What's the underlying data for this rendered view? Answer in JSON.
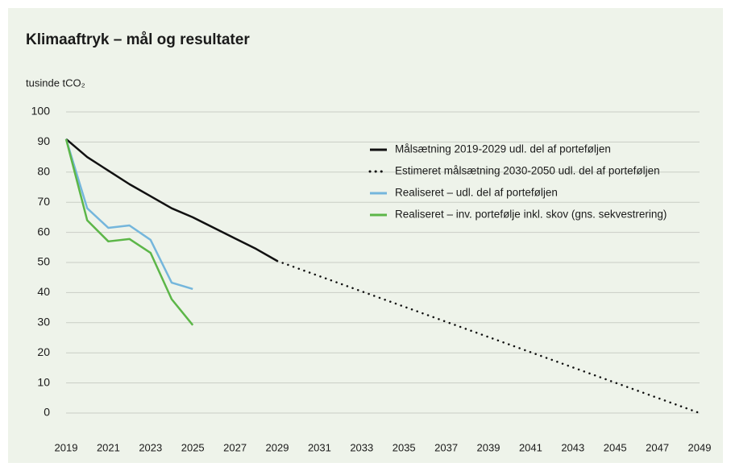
{
  "chart_data": {
    "type": "line",
    "title": "Klimaaftryk – mål og resultater",
    "y_label": "tusinde tCO₂",
    "xlim": [
      2019,
      2049
    ],
    "xticks": [
      2019,
      2021,
      2023,
      2025,
      2027,
      2029,
      2031,
      2033,
      2035,
      2037,
      2039,
      2041,
      2043,
      2045,
      2047,
      2049
    ],
    "ylim": [
      0,
      100
    ],
    "yticks": [
      0,
      10,
      20,
      30,
      40,
      50,
      60,
      70,
      80,
      90,
      100
    ],
    "grid": true,
    "legend": "top-right",
    "series": [
      {
        "name": "Målsætning 2019-2029 udl. del af porteføljen",
        "color": "#111111",
        "style": "solid",
        "x": [
          2019,
          2020,
          2021,
          2022,
          2023,
          2024,
          2025,
          2026,
          2027,
          2028,
          2029
        ],
        "values": [
          91,
          85,
          80.5,
          76,
          72,
          68,
          65,
          61.5,
          58,
          54.5,
          50.5
        ]
      },
      {
        "name": "Estimeret målsætning 2030-2050 udl. del af porteføljen",
        "color": "#111111",
        "style": "dotted",
        "x": [
          2029,
          2049
        ],
        "values": [
          50.5,
          0
        ]
      },
      {
        "name": "Realiseret – udl. del af porteføljen",
        "color": "#74b6dc",
        "style": "solid",
        "x": [
          2019,
          2020,
          2021,
          2022,
          2023,
          2024,
          2025
        ],
        "values": [
          91,
          68,
          61.5,
          62.3,
          57.5,
          43.3,
          41.2
        ]
      },
      {
        "name": "Realiseret – inv. portefølje inkl. skov (gns. sekvestrering)",
        "color": "#5cb648",
        "style": "solid",
        "x": [
          2019,
          2020,
          2021,
          2022,
          2023,
          2024,
          2025
        ],
        "values": [
          91,
          64,
          57,
          57.8,
          53.2,
          37.8,
          29.2
        ]
      }
    ]
  }
}
